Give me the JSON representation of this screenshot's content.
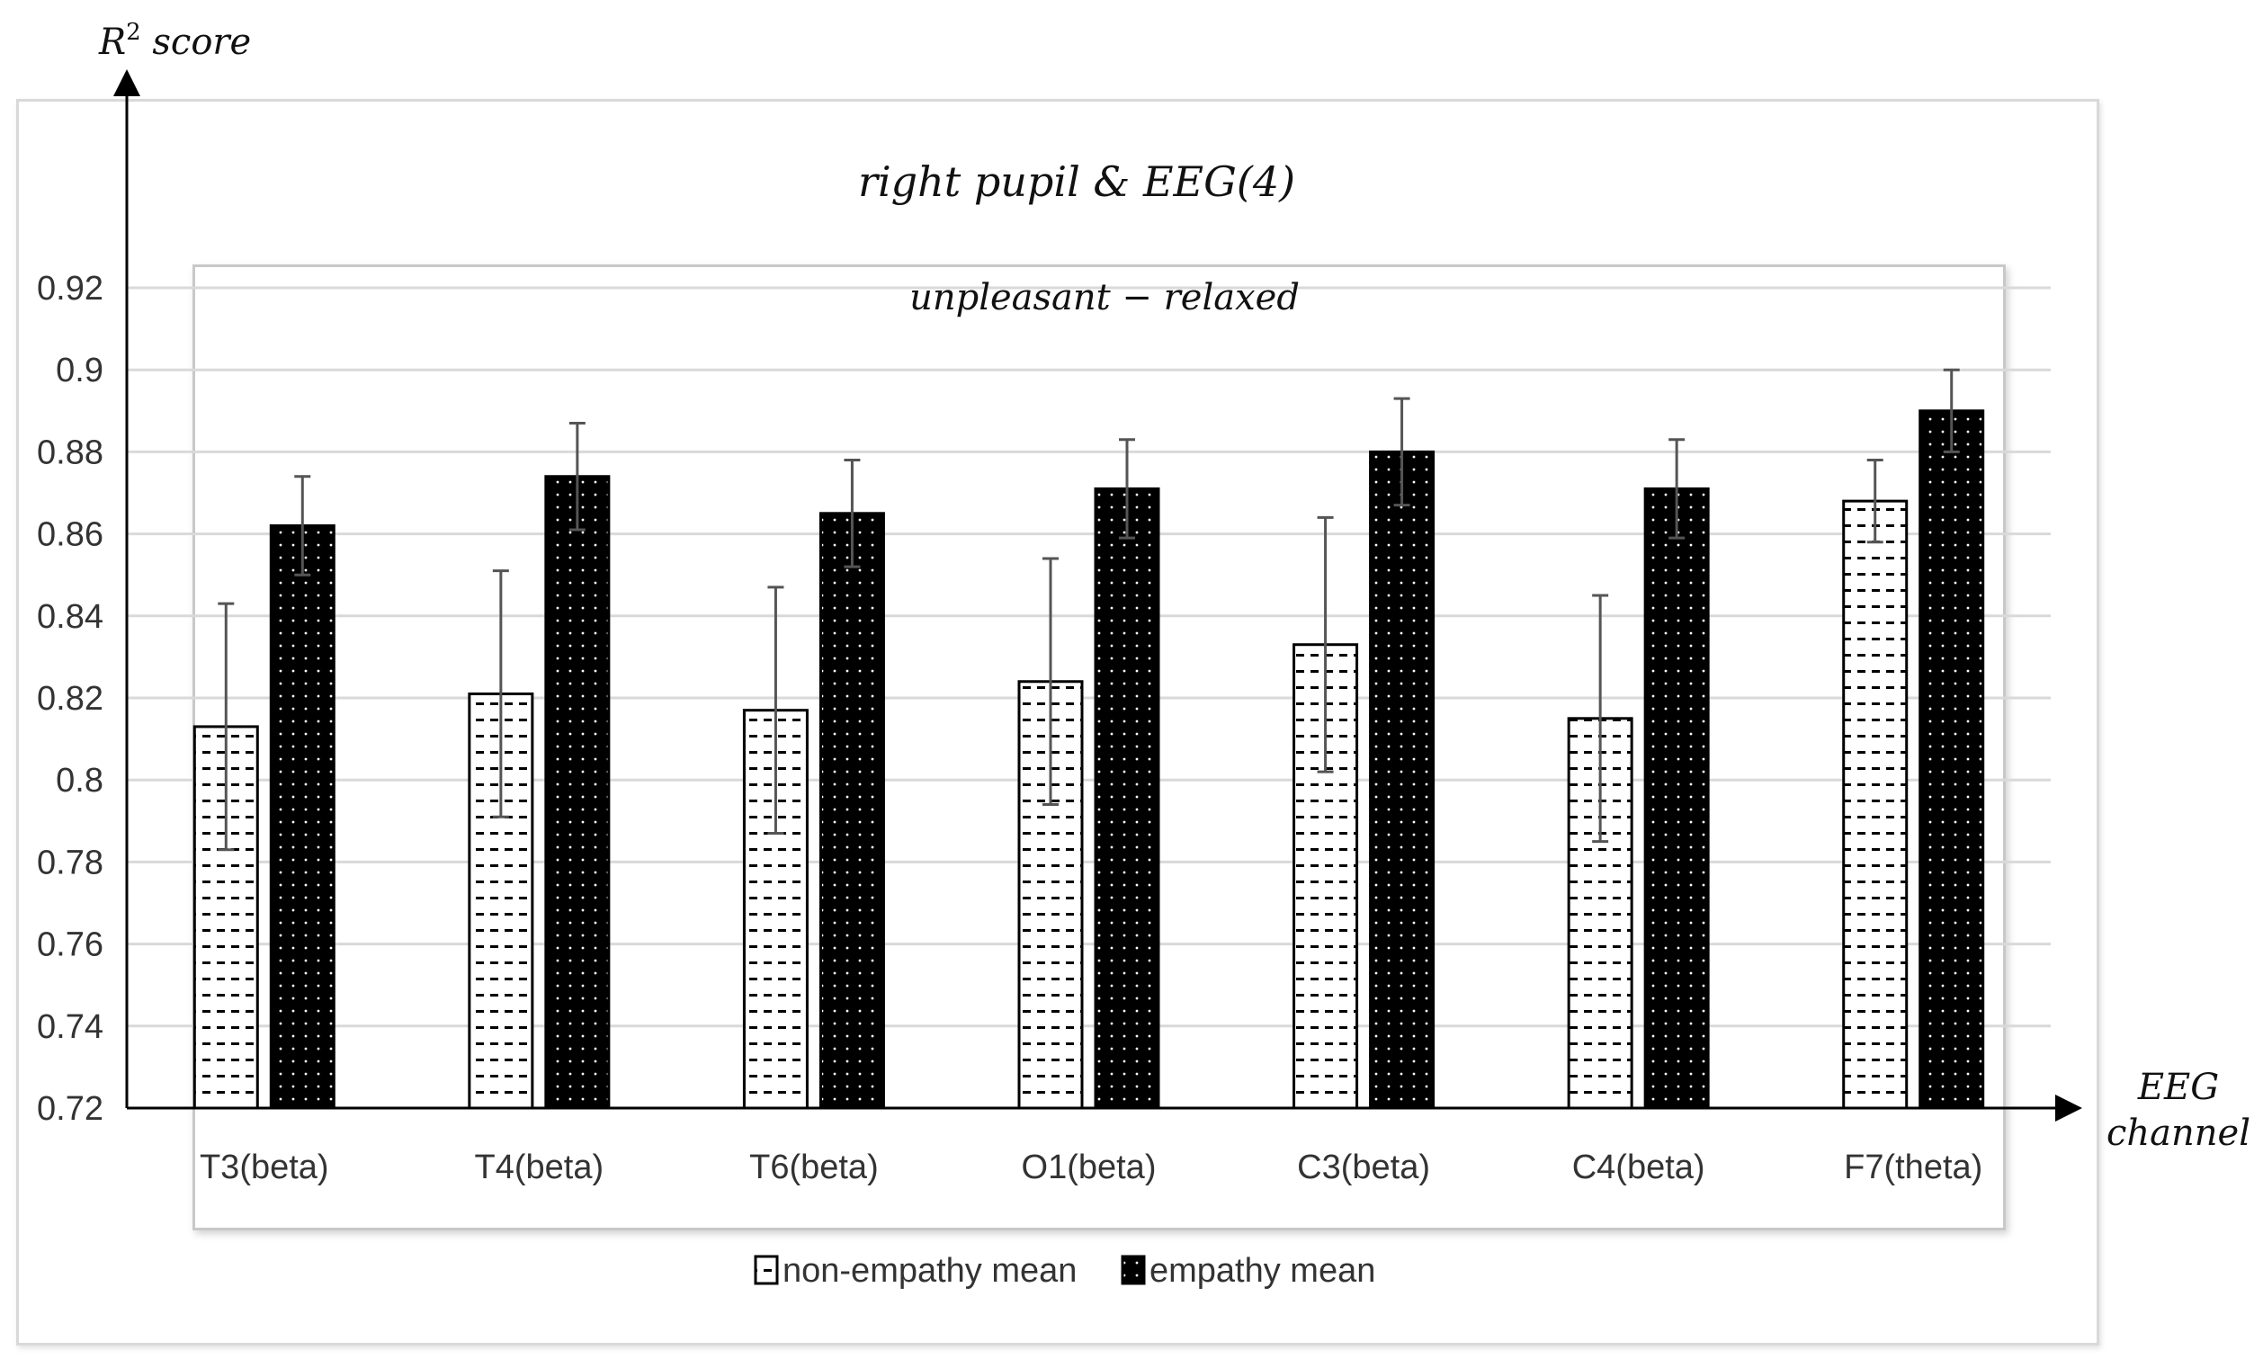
{
  "chart_data": {
    "type": "bar",
    "title": "right pupil & EEG(4)",
    "subtitle": "unpleasant − relaxed",
    "ylabel_base": "R",
    "ylabel_sup": "2",
    "ylabel_rest": " score",
    "xlabel_line1": "EEG",
    "xlabel_line2": "channel",
    "ylim": [
      0.72,
      0.92
    ],
    "yticks": [
      "0.72",
      "0.74",
      "0.76",
      "0.78",
      "0.8",
      "0.82",
      "0.84",
      "0.86",
      "0.88",
      "0.9",
      "0.92"
    ],
    "categories": [
      "T3(beta)",
      "T4(beta)",
      "T6(beta)",
      "O1(beta)",
      "C3(beta)",
      "C4(beta)",
      "F7(theta)"
    ],
    "series": [
      {
        "name": "non-empathy mean",
        "values": [
          0.813,
          0.821,
          0.817,
          0.824,
          0.833,
          0.815,
          0.868
        ],
        "error": [
          0.03,
          0.03,
          0.03,
          0.03,
          0.031,
          0.03,
          0.01
        ],
        "color": "#ffffff",
        "pattern": "dash"
      },
      {
        "name": "empathy mean",
        "values": [
          0.862,
          0.874,
          0.865,
          0.871,
          0.88,
          0.871,
          0.89
        ],
        "error": [
          0.012,
          0.013,
          0.013,
          0.012,
          0.013,
          0.012,
          0.01
        ],
        "color": "#000000",
        "pattern": "dot"
      }
    ],
    "grid": true,
    "legend_position": "bottom"
  }
}
